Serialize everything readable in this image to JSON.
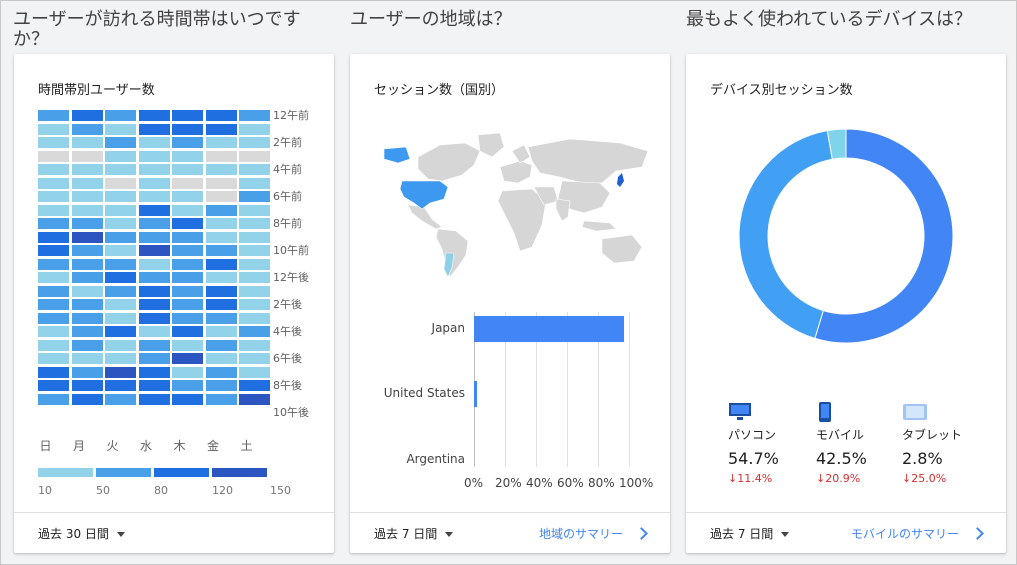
{
  "questions": {
    "q1": "ユーザーが訪れる時間帯はいつですか？",
    "q2": "ユーザーの地域は？",
    "q3": "最もよく使われているデバイスは？"
  },
  "heatmap_card": {
    "title": "時間帯別ユーザー数",
    "days": [
      "日",
      "月",
      "火",
      "水",
      "木",
      "金",
      "土"
    ],
    "hour_labels": [
      "12午前",
      "2午前",
      "4午前",
      "6午前",
      "8午前",
      "10午前",
      "12午後",
      "2午後",
      "4午後",
      "6午後",
      "8午後",
      "10午後"
    ],
    "legend": [
      "10",
      "50",
      "80",
      "120",
      "150"
    ],
    "colors": [
      "#d9d9d9",
      "#93d3ea",
      "#4a9fe9",
      "#1f6fe0",
      "#2d55c1"
    ],
    "levels": [
      [
        2,
        3,
        2,
        3,
        3,
        3,
        2
      ],
      [
        1,
        2,
        1,
        3,
        3,
        3,
        1
      ],
      [
        1,
        1,
        2,
        1,
        2,
        1,
        1
      ],
      [
        0,
        0,
        1,
        1,
        1,
        0,
        0
      ],
      [
        1,
        1,
        1,
        1,
        1,
        1,
        1
      ],
      [
        1,
        1,
        0,
        1,
        0,
        0,
        1
      ],
      [
        1,
        1,
        1,
        1,
        1,
        0,
        2
      ],
      [
        1,
        1,
        1,
        3,
        1,
        2,
        1
      ],
      [
        2,
        2,
        1,
        2,
        3,
        1,
        1
      ],
      [
        3,
        4,
        2,
        2,
        2,
        1,
        1
      ],
      [
        3,
        2,
        1,
        4,
        2,
        2,
        1
      ],
      [
        2,
        2,
        2,
        1,
        2,
        3,
        1
      ],
      [
        1,
        2,
        3,
        2,
        2,
        1,
        1
      ],
      [
        2,
        1,
        2,
        3,
        2,
        3,
        1
      ],
      [
        2,
        2,
        1,
        3,
        2,
        3,
        1
      ],
      [
        2,
        2,
        1,
        3,
        2,
        2,
        1
      ],
      [
        1,
        2,
        3,
        1,
        3,
        1,
        2
      ],
      [
        1,
        2,
        1,
        2,
        1,
        2,
        1
      ],
      [
        1,
        1,
        1,
        2,
        4,
        1,
        1
      ],
      [
        3,
        2,
        4,
        3,
        1,
        2,
        1
      ],
      [
        3,
        3,
        3,
        3,
        2,
        2,
        3
      ],
      [
        2,
        3,
        2,
        3,
        3,
        2,
        4
      ]
    ],
    "period": "過去 30 日間"
  },
  "geo_card": {
    "title": "セッション数（国別）",
    "period": "過去 7 日間",
    "summary_link": "地域のサマリー",
    "chart_data": {
      "type": "bar",
      "orientation": "horizontal",
      "categories": [
        "Japan",
        "United States",
        "Argentina"
      ],
      "values": [
        97,
        2,
        0
      ],
      "xlim": [
        0,
        100
      ],
      "xticks": [
        "0%",
        "20%",
        "40%",
        "60%",
        "80%",
        "100%"
      ]
    }
  },
  "device_card": {
    "title": "デバイス別セッション数",
    "period": "過去 7 日間",
    "summary_link": "モバイルのサマリー",
    "chart_data": {
      "type": "pie",
      "categories": [
        "パソコン",
        "モバイル",
        "タブレット"
      ],
      "values": [
        54.7,
        42.5,
        2.8
      ],
      "colors": [
        "#4285f4",
        "#42a0f4",
        "#7fd3ea"
      ]
    },
    "items": [
      {
        "name": "パソコン",
        "pct": "54.7%",
        "change": "11.4%",
        "icon": "desktop-icon"
      },
      {
        "name": "モバイル",
        "pct": "42.5%",
        "change": "20.9%",
        "icon": "mobile-icon"
      },
      {
        "name": "タブレット",
        "pct": "2.8%",
        "change": "25.0%",
        "icon": "tablet-icon"
      }
    ]
  }
}
